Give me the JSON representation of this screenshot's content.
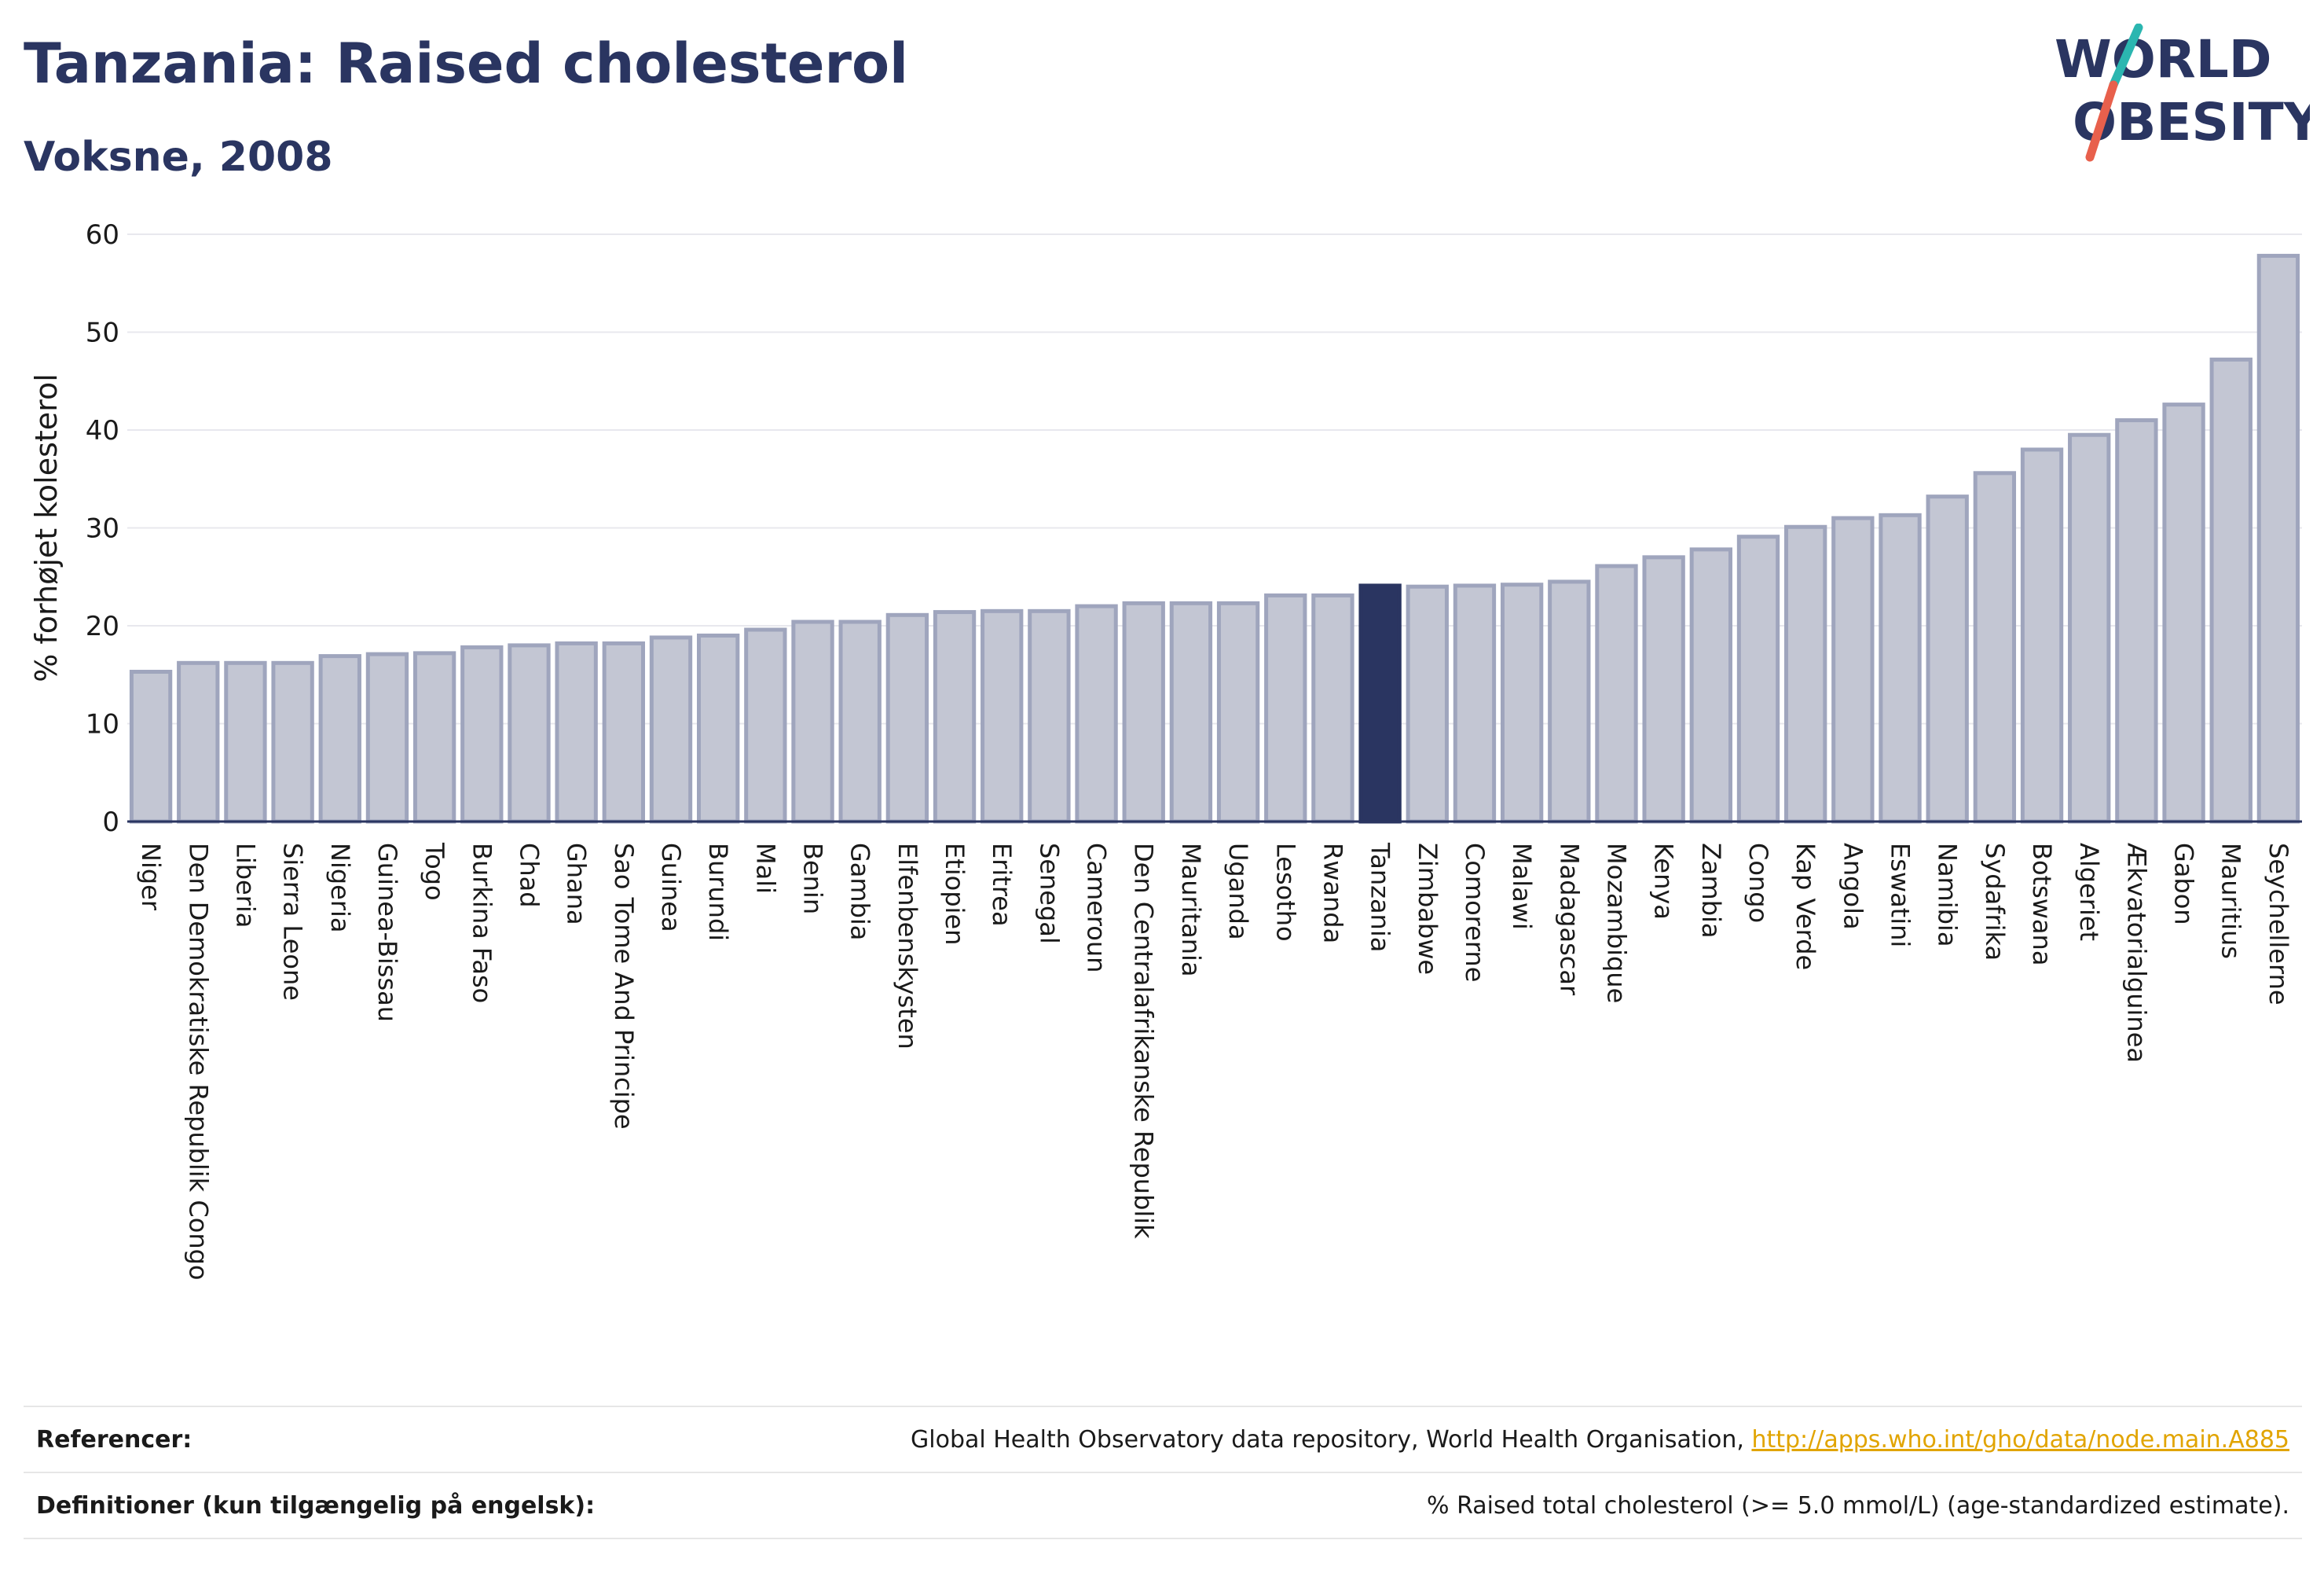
{
  "header": {
    "title": "Tanzania: Raised cholesterol",
    "subtitle": "Voksne, 2008"
  },
  "logo": {
    "line1": "WORLD",
    "line2": "OBESITY",
    "colors": {
      "text": "#2a3561",
      "slash_top": "#2bb6b0",
      "slash_bottom": "#e8604c"
    }
  },
  "chart_data": {
    "type": "bar",
    "title": "Tanzania: Raised cholesterol",
    "subtitle": "Voksne, 2008",
    "xlabel": "",
    "ylabel": "% forhøjet kolesterol",
    "ylim": [
      0,
      60
    ],
    "yticks": [
      0,
      10,
      20,
      30,
      40,
      50,
      60
    ],
    "grid": true,
    "highlight": "Tanzania",
    "colors": {
      "bar": "#c3c6d3",
      "bar_edge": "#9fa5bd",
      "highlight": "#2a3561"
    },
    "categories": [
      "Niger",
      "Den Demokratiske Republik Congo",
      "Liberia",
      "Sierra Leone",
      "Nigeria",
      "Guinea-Bissau",
      "Togo",
      "Burkina Faso",
      "Chad",
      "Ghana",
      "Sao Tome And Principe",
      "Guinea",
      "Burundi",
      "Mali",
      "Benin",
      "Gambia",
      "Elfenbenskysten",
      "Etiopien",
      "Eritrea",
      "Senegal",
      "Cameroun",
      "Den Centralafrikanske Republik",
      "Mauritania",
      "Uganda",
      "Lesotho",
      "Rwanda",
      "Tanzania",
      "Zimbabwe",
      "Comorerne",
      "Malawi",
      "Madagascar",
      "Mozambique",
      "Kenya",
      "Zambia",
      "Congo",
      "Kap Verde",
      "Angola",
      "Eswatini",
      "Namibia",
      "Sydafrika",
      "Botswana",
      "Algeriet",
      "Ækvatorialguinea",
      "Gabon",
      "Mauritius",
      "Seychellerne"
    ],
    "values": [
      15.3,
      16.2,
      16.2,
      16.2,
      16.9,
      17.1,
      17.2,
      17.8,
      18.0,
      18.2,
      18.2,
      18.8,
      19.0,
      19.6,
      20.4,
      20.4,
      21.1,
      21.4,
      21.5,
      21.5,
      22.0,
      22.3,
      22.3,
      22.3,
      23.1,
      23.1,
      24.1,
      24.0,
      24.1,
      24.2,
      24.5,
      26.1,
      27.0,
      27.8,
      29.1,
      30.1,
      31.0,
      31.3,
      33.2,
      35.6,
      38.0,
      39.5,
      41.0,
      42.6,
      47.2,
      57.8
    ]
  },
  "footer": {
    "references_label": "Referencer:",
    "references_text": "Global Health Observatory data repository, World Health Organisation, ",
    "references_link": "http://apps.who.int/gho/data/node.main.A885",
    "definitions_label": "Definitioner (kun tilgængelig på engelsk):",
    "definitions_text": "% Raised total cholesterol (>= 5.0 mmol/L) (age-standardized estimate)."
  }
}
